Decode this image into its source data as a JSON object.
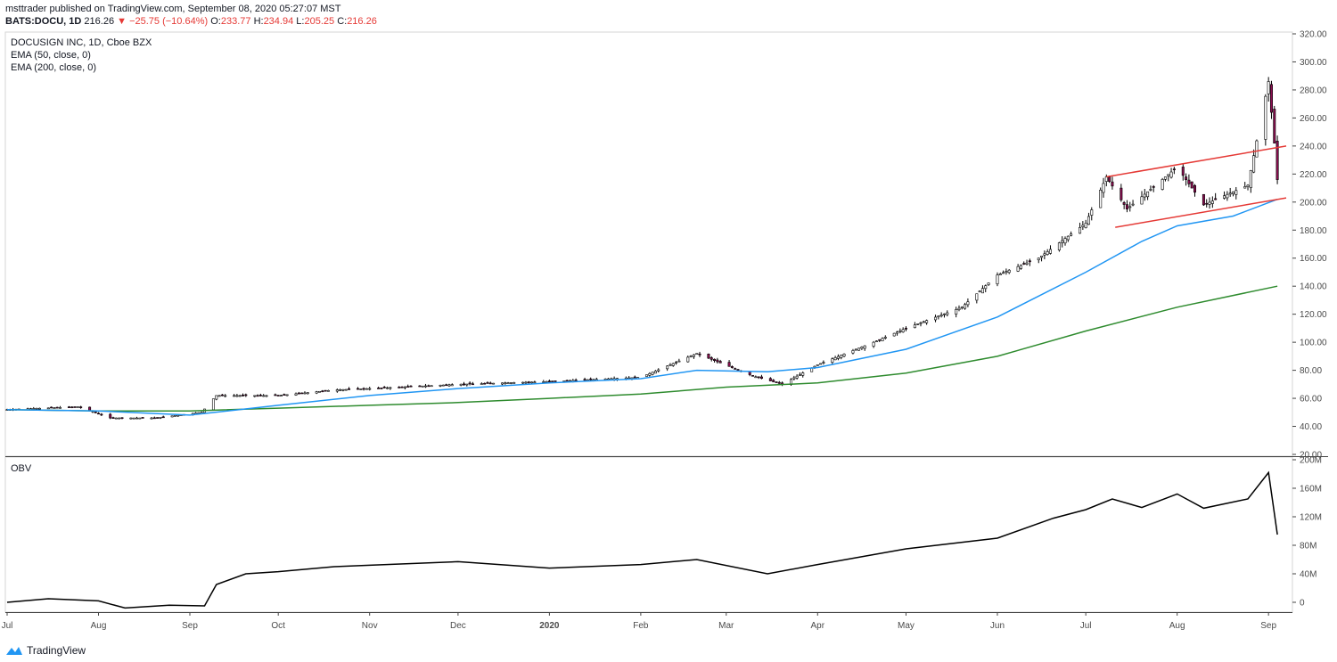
{
  "header": {
    "line1": "msttrader published on TradingView.com, September 08, 2020 05:27:07 MST",
    "ticker": "BATS:DOCU, 1D",
    "last": "216.26",
    "change": "▼ −25.75 (−10.64%)",
    "o_label": "O:",
    "o_val": "233.77",
    "h_label": "H:",
    "h_val": "234.94",
    "l_label": "L:",
    "l_val": "205.25",
    "c_label": "C:",
    "c_val": "216.26"
  },
  "legend": {
    "symbol": "DOCUSIGN INC, 1D, Cboe BZX",
    "ema50": "EMA (50, close, 0)",
    "ema200": "EMA (200, close, 0)",
    "obv": "OBV"
  },
  "brand": "TradingView",
  "colors": {
    "ema50": "#2196f3",
    "ema200": "#2e8b2e",
    "channel": "#e53935",
    "candle_up": "#ffffff",
    "candle_down": "#880e4f",
    "obv": "#000000"
  },
  "chart_data": [
    {
      "type": "line",
      "title": "DOCUSIGN INC, 1D, Cboe BZX",
      "scale": "linear",
      "ylim": [
        20,
        320
      ],
      "y_ticks": [
        "320.00",
        "300.00",
        "280.00",
        "260.00",
        "240.00",
        "220.00",
        "200.00",
        "180.00",
        "160.00",
        "140.00",
        "120.00",
        "100.00",
        "80.00",
        "60.00",
        "40.00",
        "20.00"
      ],
      "x_ticks": [
        "Jul",
        "Aug",
        "Sep",
        "Oct",
        "Nov",
        "Dec",
        "2020",
        "Feb",
        "Mar",
        "Apr",
        "May",
        "Jun",
        "Jul",
        "Aug",
        "Sep"
      ],
      "series": [
        {
          "name": "EMA (50, close, 0)",
          "x": [
            "2019-07-01",
            "2019-08-01",
            "2019-09-01",
            "2019-10-01",
            "2019-11-01",
            "2019-12-01",
            "2020-01-01",
            "2020-02-01",
            "2020-02-20",
            "2020-03-15",
            "2020-04-01",
            "2020-05-01",
            "2020-06-01",
            "2020-07-01",
            "2020-07-20",
            "2020-08-01",
            "2020-08-20",
            "2020-09-04"
          ],
          "values": [
            52,
            51,
            48,
            55,
            62,
            67,
            71,
            74,
            80,
            79,
            82,
            95,
            118,
            150,
            172,
            183,
            190,
            202
          ]
        },
        {
          "name": "EMA (200, close, 0)",
          "x": [
            "2019-07-01",
            "2019-08-01",
            "2019-09-01",
            "2019-10-01",
            "2019-11-01",
            "2019-12-01",
            "2020-01-01",
            "2020-02-01",
            "2020-03-01",
            "2020-04-01",
            "2020-05-01",
            "2020-06-01",
            "2020-07-01",
            "2020-08-01",
            "2020-09-04"
          ],
          "values": [
            52,
            51,
            51,
            53,
            55,
            57,
            60,
            63,
            68,
            71,
            78,
            90,
            108,
            125,
            140
          ]
        },
        {
          "name": "Close",
          "x": [
            "2019-07-01",
            "2019-07-25",
            "2019-08-05",
            "2019-08-20",
            "2019-09-05",
            "2019-09-10",
            "2019-10-01",
            "2019-10-20",
            "2019-11-01",
            "2019-12-01",
            "2020-01-01",
            "2020-02-01",
            "2020-02-20",
            "2020-03-10",
            "2020-03-20",
            "2020-04-01",
            "2020-04-20",
            "2020-05-01",
            "2020-05-20",
            "2020-06-01",
            "2020-06-15",
            "2020-07-01",
            "2020-07-08",
            "2020-07-15",
            "2020-08-01",
            "2020-08-10",
            "2020-08-25",
            "2020-09-01",
            "2020-09-03",
            "2020-09-04"
          ],
          "values": [
            52,
            54,
            46,
            46,
            50,
            62,
            62,
            66,
            67,
            70,
            72,
            75,
            92,
            76,
            70,
            84,
            100,
            110,
            125,
            148,
            160,
            185,
            218,
            195,
            225,
            198,
            212,
            286,
            242,
            216
          ]
        }
      ],
      "annotations": {
        "channel_upper": {
          "x": [
            "2020-07-08",
            "2020-09-07"
          ],
          "values": [
            218,
            240
          ]
        },
        "channel_lower": {
          "x": [
            "2020-07-11",
            "2020-09-07"
          ],
          "values": [
            182,
            203
          ]
        }
      }
    },
    {
      "type": "line",
      "title": "OBV",
      "ylim": [
        -10,
        200
      ],
      "y_ticks": [
        "200M",
        "160M",
        "120M",
        "80M",
        "40M",
        "0"
      ],
      "series": [
        {
          "name": "OBV",
          "x": [
            "2019-07-01",
            "2019-07-15",
            "2019-08-01",
            "2019-08-10",
            "2019-08-25",
            "2019-09-06",
            "2019-09-10",
            "2019-09-20",
            "2019-10-01",
            "2019-10-20",
            "2019-11-01",
            "2019-12-01",
            "2020-01-01",
            "2020-02-01",
            "2020-02-20",
            "2020-03-15",
            "2020-04-01",
            "2020-05-01",
            "2020-06-01",
            "2020-06-20",
            "2020-07-01",
            "2020-07-10",
            "2020-07-20",
            "2020-08-01",
            "2020-08-10",
            "2020-08-25",
            "2020-09-01",
            "2020-09-04"
          ],
          "values": [
            0,
            5,
            2,
            -8,
            -4,
            -5,
            25,
            40,
            43,
            50,
            52,
            57,
            48,
            53,
            60,
            40,
            53,
            75,
            90,
            118,
            130,
            145,
            133,
            152,
            132,
            145,
            182,
            95
          ]
        }
      ]
    }
  ]
}
